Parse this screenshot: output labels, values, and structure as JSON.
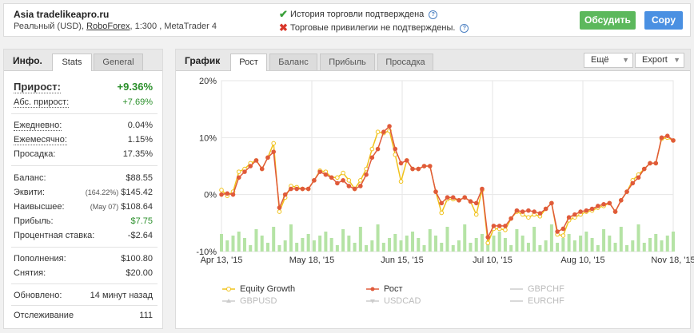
{
  "header": {
    "account_name": "Asia tradelikeapro.ru",
    "account_type": "Реальный (USD),",
    "broker": "RoboForex",
    "leverage_platform": ", 1:300 , MetaTrader 4",
    "history_status": "История торговли подтверждена",
    "privileges_status": "Торговые привилегии не подтверждены.",
    "discuss_label": "Обсудить",
    "copy_label": "Copy",
    "help_mark": "?"
  },
  "info_panel": {
    "title": "Инфо.",
    "tabs": [
      "Stats",
      "General"
    ],
    "active_tab": "Stats",
    "gain_label": "Прирост:",
    "gain_value": "+9.36%",
    "abs_gain_label": "Абс. прирост:",
    "abs_gain_value": "+7.69%",
    "daily_label": "Ежедневно:",
    "daily_value": "0.04%",
    "monthly_label": "Ежемесячно:",
    "monthly_value": "1.15%",
    "drawdown_label": "Просадка:",
    "drawdown_value": "17.35%",
    "balance_label": "Баланс:",
    "balance_value": "$88.55",
    "equity_label": "Эквити:",
    "equity_pct": "(164.22%)",
    "equity_value": "$145.42",
    "highest_label": "Наивысшее:",
    "highest_date": "(May 07)",
    "highest_value": "$108.64",
    "profit_label": "Прибыль:",
    "profit_value": "$7.75",
    "interest_label": "Процентная ставка:",
    "interest_value": "-$2.64",
    "deposits_label": "Пополнения:",
    "deposits_value": "$100.80",
    "withdrawals_label": "Снятия:",
    "withdrawals_value": "$20.00",
    "updated_label": "Обновлено:",
    "updated_value": "14 минут назад",
    "tracking_label": "Отслеживание",
    "tracking_value": "111"
  },
  "chart_panel": {
    "title": "График",
    "tabs": [
      "Рост",
      "Баланс",
      "Прибыль",
      "Просадка"
    ],
    "active_tab": "Рост",
    "more_label": "Ещё",
    "export_label": "Export",
    "dropdown_arrow": "▼"
  },
  "colors": {
    "growth": "#e05a3a",
    "equity": "#f0c21c",
    "bars": "#b5e3a5",
    "discuss": "#5cb85c",
    "copy": "#4a90e2"
  },
  "chart_data": {
    "type": "line",
    "x_tick_labels": [
      "Apr 13, '15",
      "May 18, '15",
      "Jun 15, '15",
      "Jul 10, '15",
      "Aug 10, '15",
      "Nov 18, '15"
    ],
    "y_tick_labels": [
      "20%",
      "10%",
      "0%",
      "-10%"
    ],
    "ylim": [
      -10,
      20
    ],
    "grid": true,
    "legend_position": "bottom",
    "series": [
      {
        "name": "Equity Growth",
        "color": "#f0c21c",
        "values": [
          0.8,
          -0.2,
          0.5,
          4.0,
          4.5,
          5.5,
          6.0,
          4.5,
          6.5,
          9.0,
          -3.0,
          -0.5,
          1.5,
          1.3,
          1.0,
          1.0,
          2.5,
          4.2,
          4.0,
          3.0,
          3.0,
          3.8,
          2.5,
          1.0,
          2.5,
          4.5,
          8.0,
          11.0,
          10.8,
          11.2,
          7.0,
          2.3,
          6.0,
          4.5,
          4.5,
          5.0,
          5.0,
          0.5,
          -3.2,
          -0.8,
          -0.8,
          -1.0,
          -0.5,
          -1.2,
          -3.5,
          0.8,
          -8.5,
          -6.0,
          -6.0,
          -6.2,
          -4.2,
          -3.0,
          -3.5,
          -4.0,
          -3.5,
          -3.8,
          -2.5,
          -1.5,
          -7.0,
          -7.2,
          -4.5,
          -4.0,
          -3.5,
          -3.0,
          -2.8,
          -2.3,
          -2.0,
          -1.5,
          -3.0,
          -1.0,
          0.5,
          2.5,
          3.5,
          4.5,
          5.5,
          5.5,
          9.8,
          10.0,
          9.5
        ]
      },
      {
        "name": "Рост",
        "color": "#e05a3a",
        "values": [
          0.0,
          0.2,
          0.0,
          3.0,
          4.0,
          5.0,
          6.0,
          4.5,
          6.5,
          7.5,
          -2.3,
          0.0,
          1.0,
          1.0,
          1.0,
          1.0,
          2.5,
          4.0,
          3.5,
          3.0,
          2.0,
          2.5,
          1.5,
          1.0,
          1.5,
          3.5,
          6.5,
          8.0,
          11.0,
          12.0,
          8.0,
          5.5,
          6.0,
          4.5,
          4.5,
          5.0,
          5.0,
          0.5,
          -1.5,
          -0.5,
          -0.5,
          -1.0,
          -0.5,
          -1.2,
          -1.5,
          1.0,
          -7.5,
          -5.5,
          -5.5,
          -5.5,
          -4.2,
          -2.8,
          -3.0,
          -2.8,
          -3.0,
          -3.3,
          -2.5,
          -1.5,
          -6.5,
          -6.0,
          -4.0,
          -3.5,
          -3.0,
          -2.8,
          -2.5,
          -2.0,
          -1.7,
          -1.5,
          -3.0,
          -1.0,
          0.5,
          2.0,
          3.0,
          4.5,
          5.5,
          5.5,
          10.0,
          10.3,
          9.5
        ]
      }
    ]
  },
  "legend": {
    "items": [
      {
        "label": "Equity Growth",
        "color": "#f0c21c",
        "active": true
      },
      {
        "label": "Рост",
        "color": "#e05a3a",
        "active": true
      },
      {
        "label": "GBPCHF",
        "color": "#c8c8c8",
        "active": false
      },
      {
        "label": "GBPUSD",
        "color": "#c8c8c8",
        "active": false
      },
      {
        "label": "USDCAD",
        "color": "#c8c8c8",
        "active": false
      },
      {
        "label": "EURCHF",
        "color": "#c8c8c8",
        "active": false
      }
    ]
  }
}
